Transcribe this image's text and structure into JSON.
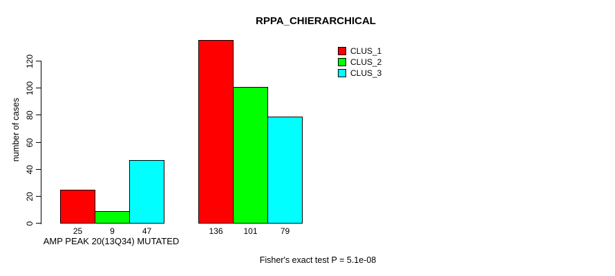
{
  "chart_data": {
    "type": "bar",
    "title": "RPPA_CHIERARCHICAL",
    "ylabel": "number of cases",
    "xlabel": "AMP PEAK 20(13Q34) MUTATED",
    "ylim": [
      0,
      120
    ],
    "yticks": [
      0,
      20,
      40,
      60,
      80,
      100,
      120
    ],
    "groups": 2,
    "series": [
      {
        "name": "CLUS_1",
        "color": "#ff0000",
        "values": [
          25,
          136
        ]
      },
      {
        "name": "CLUS_2",
        "color": "#00ff00",
        "values": [
          9,
          101
        ]
      },
      {
        "name": "CLUS_3",
        "color": "#00ffff",
        "values": [
          47,
          79
        ]
      }
    ],
    "bar_value_labels": [
      [
        "25",
        "9",
        "47"
      ],
      [
        "136",
        "101",
        "79"
      ]
    ],
    "legend": {
      "position": "top-right",
      "entries": [
        "CLUS_1",
        "CLUS_2",
        "CLUS_3"
      ]
    },
    "annotation": "Fisher's exact test P = 5.1e-08",
    "grid": false,
    "axis_color": "#000000",
    "background_color": "#ffffff"
  }
}
